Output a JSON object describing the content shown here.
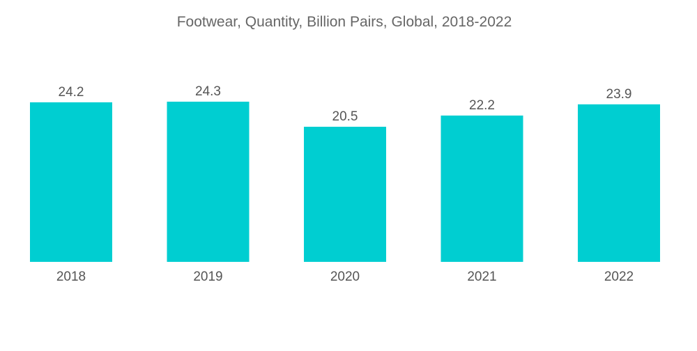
{
  "chart_data": {
    "type": "bar",
    "title": "Footwear, Quantity, Billion Pairs, Global, 2018-2022",
    "categories": [
      "2018",
      "2019",
      "2020",
      "2021",
      "2022"
    ],
    "values": [
      24.2,
      24.3,
      20.5,
      22.2,
      23.9
    ],
    "value_labels": [
      "24.2",
      "24.3",
      "20.5",
      "22.2",
      "23.9"
    ],
    "xlabel": "",
    "ylabel": "",
    "ylim": [
      0,
      24.3
    ],
    "grid": false,
    "legend": "none",
    "bar_color": "#00CED1"
  }
}
